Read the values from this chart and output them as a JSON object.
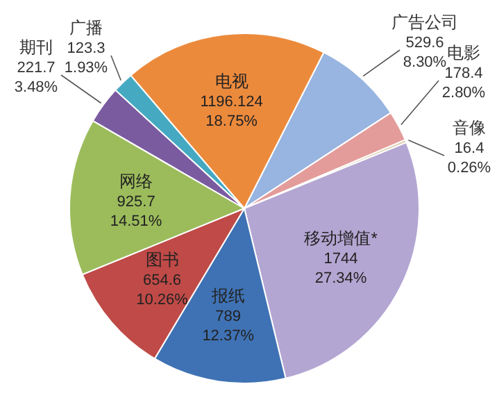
{
  "chart_data": {
    "type": "pie",
    "categories": [
      "广告公司",
      "电影",
      "音像",
      "移动增值*",
      "报纸",
      "图书",
      "网络",
      "期刊",
      "广播",
      "电视"
    ],
    "values": [
      529.6,
      178.4,
      16.4,
      1744,
      789,
      654.6,
      925.7,
      221.7,
      123.3,
      1196.124
    ],
    "colors": [
      "#98b4e0",
      "#e39c9a",
      "#d8c8a4",
      "#b4a6d2",
      "#3f72b4",
      "#bf4a47",
      "#9cbc5c",
      "#7a5ba0",
      "#46a9c2",
      "#ec8a3c"
    ],
    "value_labels": [
      "529.6\n8.30%",
      "178.4\n2.80%",
      "16.4\n0.26%",
      "1744\n27.34%",
      "789\n12.37%",
      "654.6\n10.26%",
      "925.7\n14.51%",
      "221.7\n3.48%",
      "123.3\n1.93%",
      "1196.124\n18.75%"
    ]
  }
}
